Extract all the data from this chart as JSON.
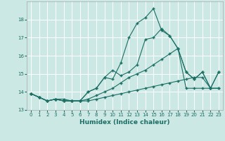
{
  "xlabel": "Humidex (Indice chaleur)",
  "bg_color": "#cce8e4",
  "line_color": "#1a6e64",
  "xlim": [
    -0.5,
    23.5
  ],
  "ylim": [
    13,
    19
  ],
  "yticks": [
    13,
    14,
    15,
    16,
    17,
    18
  ],
  "xtick_labels": [
    "0",
    "1",
    "2",
    "3",
    "4",
    "5",
    "6",
    "7",
    "8",
    "9",
    "10",
    "11",
    "12",
    "13",
    "14",
    "15",
    "16",
    "17",
    "18",
    "19",
    "20",
    "21",
    "22",
    "23"
  ],
  "series": [
    [
      13.9,
      13.7,
      13.5,
      13.6,
      13.6,
      13.5,
      13.5,
      14.0,
      14.2,
      14.8,
      15.2,
      14.9,
      15.1,
      15.5,
      16.9,
      17.0,
      17.5,
      17.1,
      16.4,
      15.1,
      14.7,
      15.1,
      14.2,
      15.1
    ],
    [
      13.9,
      13.7,
      13.5,
      13.6,
      13.5,
      13.5,
      13.5,
      14.0,
      14.2,
      14.8,
      14.7,
      15.6,
      17.0,
      17.8,
      18.1,
      18.6,
      17.4,
      17.1,
      16.4,
      15.1,
      14.7,
      15.1,
      14.2,
      15.1
    ],
    [
      13.9,
      13.7,
      13.5,
      13.6,
      13.5,
      13.5,
      13.5,
      13.6,
      13.8,
      14.0,
      14.2,
      14.5,
      14.8,
      15.0,
      15.2,
      15.5,
      15.8,
      16.1,
      16.4,
      14.2,
      14.2,
      14.2,
      14.2,
      14.2
    ],
    [
      13.9,
      13.7,
      13.5,
      13.6,
      13.5,
      13.5,
      13.5,
      13.5,
      13.6,
      13.7,
      13.8,
      13.9,
      14.0,
      14.1,
      14.2,
      14.3,
      14.4,
      14.5,
      14.6,
      14.7,
      14.8,
      14.8,
      14.2,
      14.2
    ]
  ]
}
